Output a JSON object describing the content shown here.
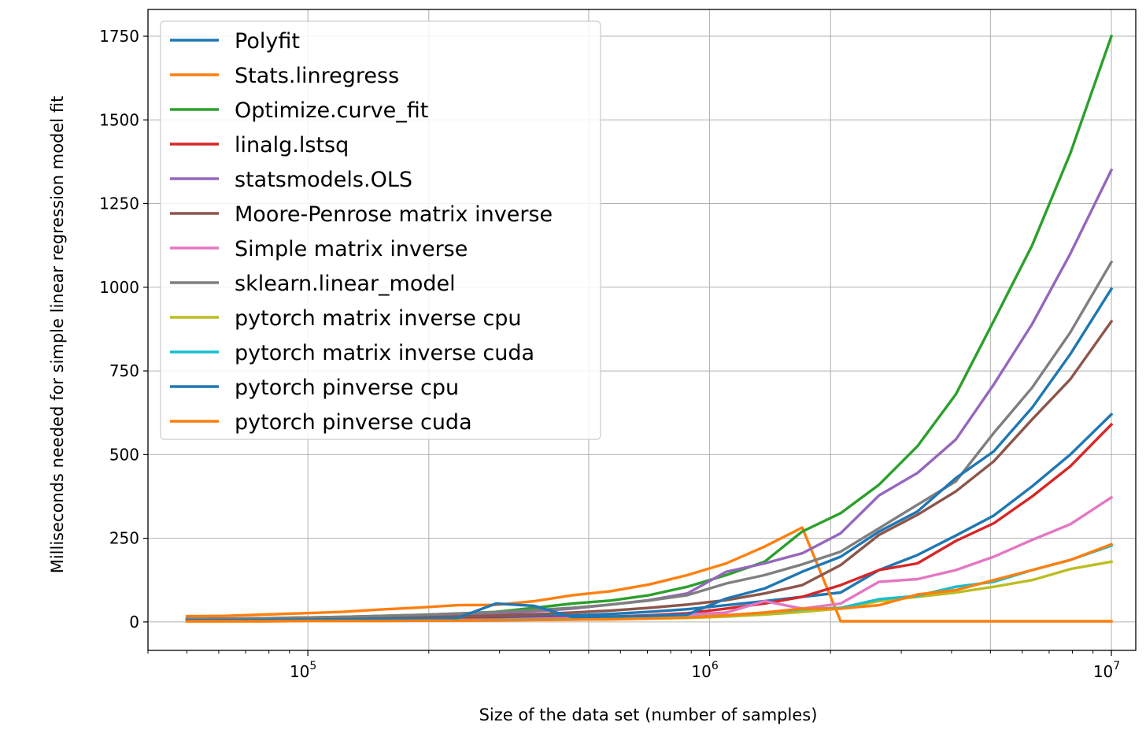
{
  "chart_data": {
    "type": "line",
    "title": "",
    "xlabel": "Size of the data set (number of samples)",
    "ylabel": "Milliseconds needed for simple linear regression model fit",
    "xscale": "log",
    "xlim": [
      40000,
      11500000
    ],
    "ylim": [
      -85,
      1830
    ],
    "xticks": [
      {
        "value": 100000,
        "base": "10",
        "exp": "5"
      },
      {
        "value": 1000000,
        "base": "10",
        "exp": "6"
      },
      {
        "value": 10000000,
        "base": "10",
        "exp": "7"
      }
    ],
    "yticks": [
      "0",
      "250",
      "500",
      "750",
      "1000",
      "1250",
      "1500",
      "1750"
    ],
    "grid": true,
    "legend_position": "upper-left",
    "x": [
      50000,
      62000,
      78000,
      98000,
      122000,
      152000,
      190000,
      236000,
      294000,
      366000,
      456000,
      568000,
      707000,
      880000,
      1100000,
      1370000,
      1700000,
      2120000,
      2640000,
      3290000,
      4100000,
      5100000,
      6350000,
      7900000,
      10000000
    ],
    "series": [
      {
        "name": "Polyfit",
        "color": "#1f77b4",
        "values": [
          4,
          4,
          5,
          6,
          7,
          8,
          9,
          11,
          13,
          16,
          20,
          24,
          30,
          38,
          50,
          62,
          75,
          88,
          155,
          200,
          258,
          318,
          405,
          500,
          620
        ]
      },
      {
        "name": "Stats.linregress",
        "color": "#ff7f0e",
        "values": [
          17,
          18,
          22,
          26,
          30,
          37,
          43,
          50,
          51,
          62,
          80,
          92,
          112,
          140,
          175,
          225,
          282,
          2,
          2,
          2,
          2,
          2,
          2,
          2,
          2
        ]
      },
      {
        "name": "Optimize.curve_fit",
        "color": "#2ca02c",
        "values": [
          8,
          9,
          11,
          13,
          15,
          18,
          21,
          25,
          30,
          42,
          55,
          64,
          80,
          105,
          140,
          180,
          270,
          325,
          410,
          525,
          680,
          900,
          1125,
          1400,
          1750
        ]
      },
      {
        "name": "linalg.lstsq",
        "color": "#d62728",
        "values": [
          3,
          3,
          4,
          4,
          5,
          6,
          7,
          8,
          9,
          11,
          13,
          16,
          20,
          26,
          40,
          55,
          75,
          110,
          155,
          175,
          242,
          295,
          375,
          465,
          590
        ]
      },
      {
        "name": "statsmodels.OLS",
        "color": "#9467bd",
        "values": [
          8,
          9,
          10,
          11,
          13,
          15,
          17,
          20,
          25,
          32,
          40,
          52,
          65,
          85,
          150,
          175,
          205,
          265,
          378,
          445,
          545,
          710,
          890,
          1100,
          1350
        ]
      },
      {
        "name": "Moore-Penrose matrix inverse",
        "color": "#8c564b",
        "values": [
          6,
          7,
          8,
          9,
          10,
          12,
          14,
          16,
          19,
          23,
          28,
          34,
          42,
          52,
          65,
          85,
          110,
          170,
          260,
          320,
          390,
          480,
          605,
          725,
          898
        ]
      },
      {
        "name": "Simple matrix inverse",
        "color": "#e377c2",
        "values": [
          3,
          3,
          3,
          4,
          4,
          5,
          5,
          6,
          7,
          9,
          11,
          14,
          18,
          22,
          28,
          62,
          40,
          55,
          120,
          128,
          155,
          195,
          245,
          292,
          372
        ]
      },
      {
        "name": "sklearn.linear_model",
        "color": "#7f7f7f",
        "values": [
          9,
          10,
          11,
          13,
          15,
          18,
          21,
          25,
          29,
          35,
          42,
          52,
          64,
          80,
          115,
          140,
          172,
          210,
          280,
          350,
          420,
          565,
          700,
          865,
          1075
        ]
      },
      {
        "name": "pytorch matrix inverse cpu",
        "color": "#bcbd22",
        "values": [
          2,
          2,
          2,
          3,
          3,
          3,
          4,
          4,
          5,
          6,
          7,
          8,
          10,
          12,
          16,
          22,
          30,
          40,
          62,
          75,
          88,
          105,
          125,
          158,
          180
        ]
      },
      {
        "name": "pytorch matrix inverse cuda",
        "color": "#17becf",
        "values": [
          3,
          3,
          3,
          4,
          4,
          4,
          5,
          5,
          6,
          7,
          8,
          9,
          11,
          14,
          20,
          28,
          38,
          42,
          68,
          78,
          105,
          120,
          155,
          185,
          228
        ]
      },
      {
        "name": "pytorch pinverse cpu",
        "color": "#1f77b4",
        "values": [
          5,
          5,
          6,
          7,
          8,
          9,
          10,
          12,
          55,
          48,
          14,
          16,
          18,
          22,
          70,
          100,
          150,
          195,
          270,
          330,
          430,
          510,
          640,
          800,
          995
        ]
      },
      {
        "name": "pytorch pinverse cuda",
        "color": "#ff7f0e",
        "values": [
          2,
          2,
          2,
          3,
          3,
          3,
          4,
          4,
          5,
          6,
          7,
          8,
          10,
          13,
          20,
          28,
          40,
          40,
          50,
          82,
          95,
          125,
          155,
          185,
          232
        ]
      }
    ]
  }
}
